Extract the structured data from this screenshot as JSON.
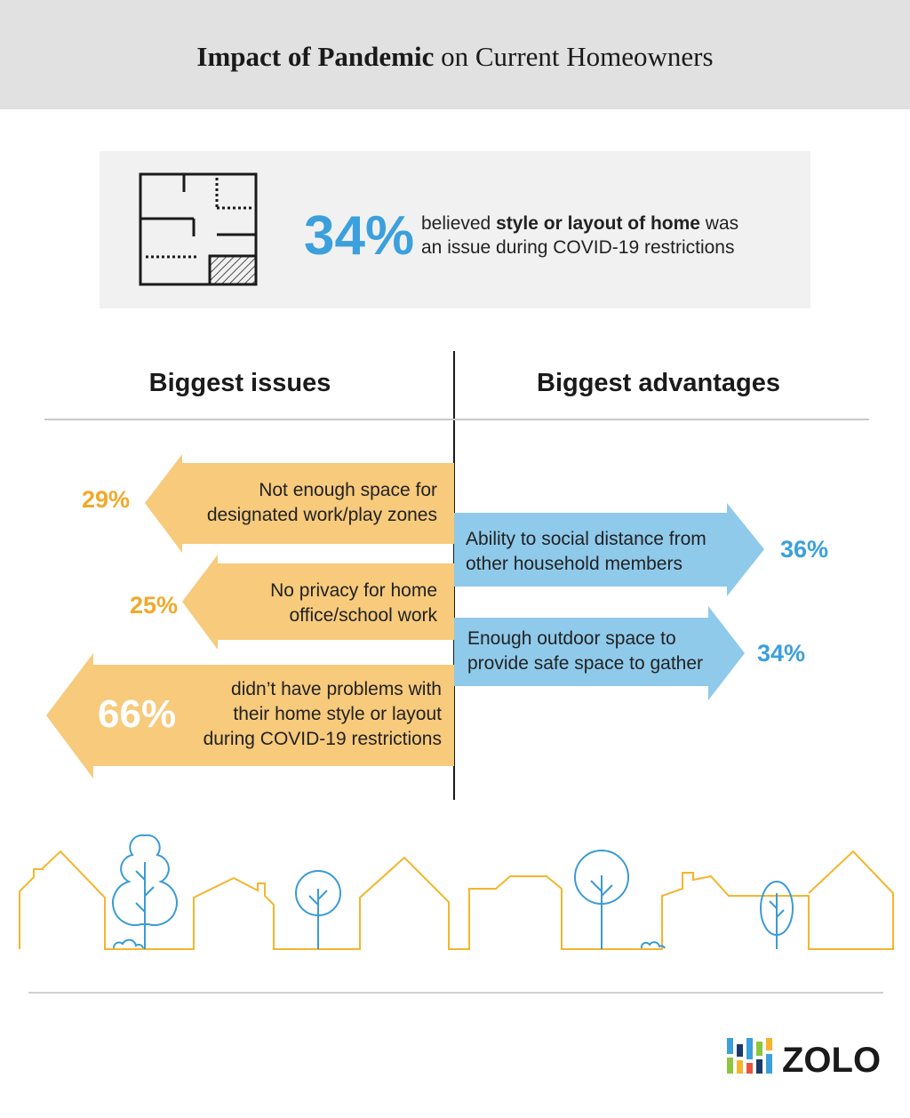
{
  "header": {
    "title_bold": "Impact of Pandemic",
    "title_rest": "on Current Homeowners"
  },
  "stat": {
    "value": "34%",
    "text_before": "believed",
    "text_bold": "style or layout of home",
    "text_after": "was",
    "line2": "an issue during COVID-19 restrictions"
  },
  "issues": {
    "heading": "Biggest issues",
    "items": [
      {
        "value": "29%",
        "lines": [
          "Not enough space for",
          "designated work/play zones"
        ]
      },
      {
        "value": "25%",
        "lines": [
          "No privacy for home",
          "office/school work"
        ]
      },
      {
        "value": "66%",
        "lines": [
          "didn’t have problems with",
          "their home style or layout",
          "during COVID-19 restrictions"
        ]
      }
    ]
  },
  "advantages": {
    "heading": "Biggest advantages",
    "items": [
      {
        "value": "36%",
        "lines": [
          "Ability to social distance from",
          "other household members"
        ]
      },
      {
        "value": "34%",
        "lines": [
          "Enough outdoor space to",
          "provide safe space to gather"
        ]
      }
    ]
  },
  "brand": "ZOLO"
}
